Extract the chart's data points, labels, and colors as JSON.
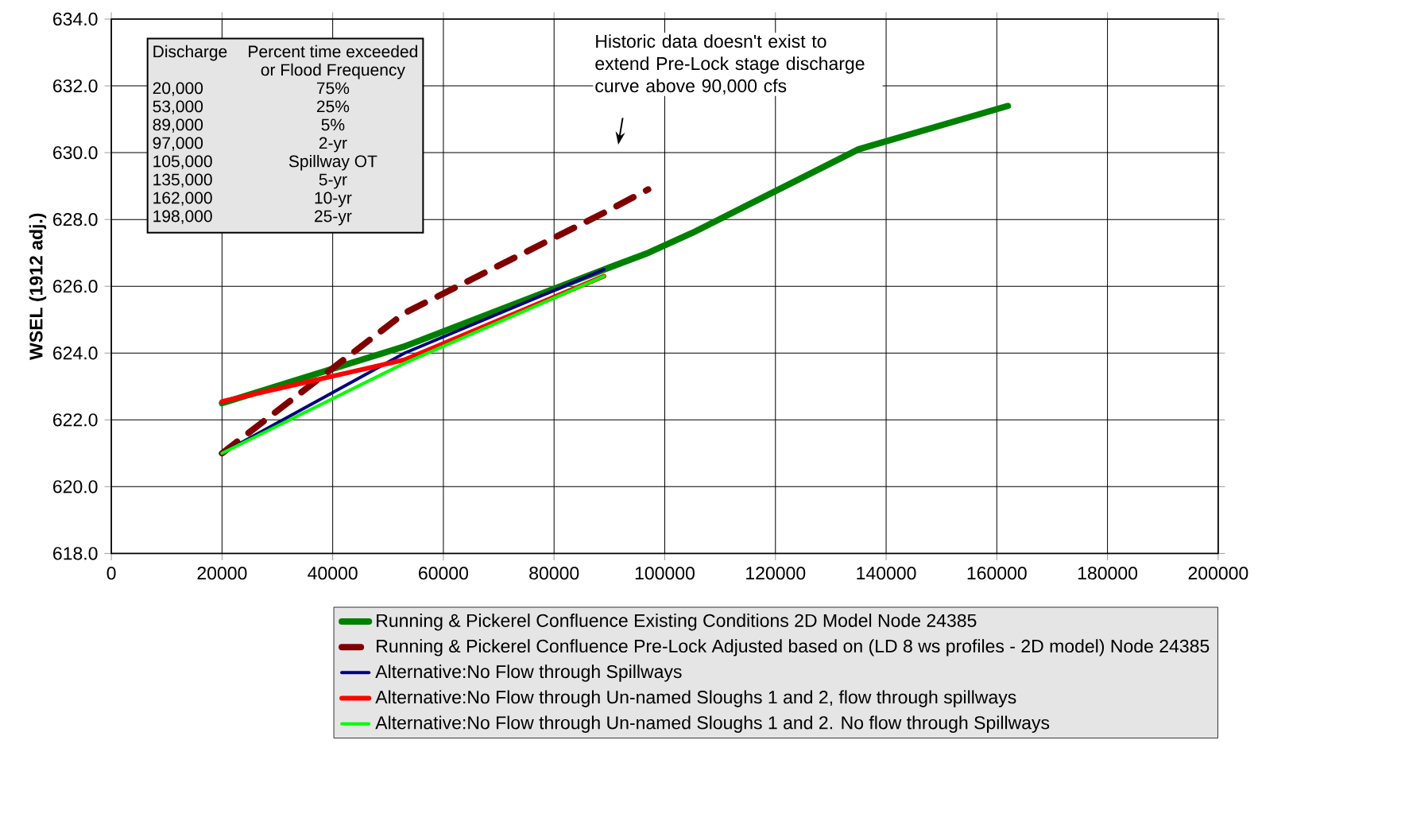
{
  "chart_data": {
    "type": "line",
    "ylabel": "WSEL (1912 adj.)",
    "xlim": [
      0,
      200000
    ],
    "xticks": [
      0,
      20000,
      40000,
      60000,
      80000,
      100000,
      120000,
      140000,
      160000,
      180000,
      200000
    ],
    "ylim": [
      618,
      634
    ],
    "yticks": [
      {
        "value": 618,
        "label": "618.0"
      },
      {
        "value": 620,
        "label": "620.0"
      },
      {
        "value": 622,
        "label": "622.0"
      },
      {
        "value": 624,
        "label": "624.0"
      },
      {
        "value": 626,
        "label": "626.0"
      },
      {
        "value": 628,
        "label": "628.0"
      },
      {
        "value": 630,
        "label": "630.0"
      },
      {
        "value": 632,
        "label": "632.0"
      },
      {
        "value": 634,
        "label": "634.0"
      }
    ],
    "grid": true,
    "legend": "bottom right",
    "series": [
      {
        "name": "Running & Pickerel Confluence Existing  Conditions 2D Model  Node 24385",
        "color": "#008000",
        "line_style": "solid",
        "x": [
          20000,
          53000,
          89000,
          97000,
          105000,
          135000,
          162000
        ],
        "values": [
          622.5,
          624.2,
          626.5,
          627.0,
          627.6,
          630.1,
          631.4
        ]
      },
      {
        "name": "Running & Pickerel Confluence Pre-Lock Adjusted based on (LD 8 ws profiles - 2D model) Node 24385",
        "color": "#800000",
        "line_style": "dashed",
        "x": [
          20000,
          53000,
          89000,
          97000
        ],
        "values": [
          621.0,
          625.2,
          628.2,
          628.9
        ]
      },
      {
        "name": "Alternative:No Flow through Spillways",
        "color": "#000080",
        "line_style": "solid",
        "x": [
          20000,
          53000,
          89000
        ],
        "values": [
          621.0,
          624.0,
          626.5
        ]
      },
      {
        "name": "Alternative:No Flow through Un-named Sloughs 1 and 2, flow through spillways",
        "color": "#ff0000",
        "line_style": "solid",
        "x": [
          20000,
          53000,
          89000
        ],
        "values": [
          622.55,
          623.8,
          626.3
        ]
      },
      {
        "name": "Alternative:No Flow through Un-named Sloughs 1 and 2. No flow through Spillways",
        "color": "#00ff00",
        "line_style": "solid",
        "x": [
          20000,
          53000,
          89000
        ],
        "values": [
          621.0,
          623.7,
          626.3
        ]
      }
    ],
    "annotations": [
      "Historic data doesn't exist to extend Pre-Lock stage discharge curve above 90,000 cfs",
      "Discharge",
      "Percent time exceeded",
      "or Flood Frequency",
      "20,000",
      "75%",
      "53,000",
      "25%",
      "89,000",
      "5%",
      "97,000",
      "2-yr",
      "105,000",
      "Spillway OT",
      "135,000",
      "5-yr",
      "162,000",
      "10-yr",
      "198,000",
      "25-yr"
    ]
  }
}
